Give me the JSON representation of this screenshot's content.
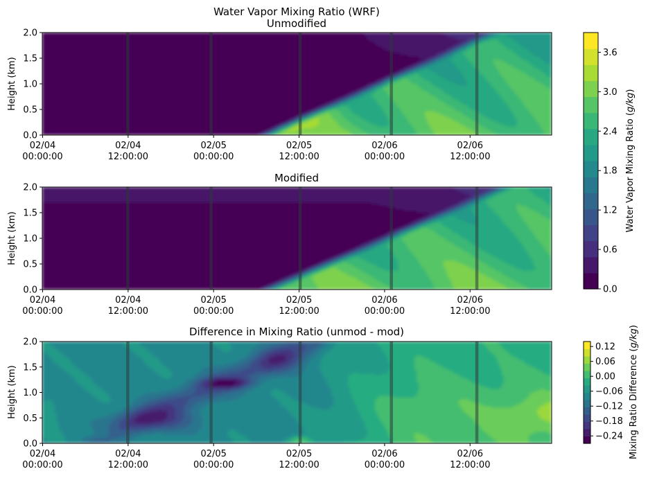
{
  "figure_title": "Water Vapor Mixing Ratio (WRF)",
  "colormap": [
    "#440154",
    "#472d7b",
    "#3b528b",
    "#2c728e",
    "#21918c",
    "#28ae80",
    "#5ec962",
    "#addc30",
    "#fde725"
  ],
  "chart_data": [
    {
      "type": "heatmap",
      "title": "Unmodified",
      "ylabel": "Height (km)",
      "ylim": [
        0,
        2.0
      ],
      "yticks": [
        "0.0",
        "0.5",
        "1.0",
        "1.5",
        "2.0"
      ],
      "xticks": [
        {
          "date": "02/04",
          "time": "00:00:00",
          "hour": 0
        },
        {
          "date": "02/04",
          "time": "12:00:00",
          "hour": 12
        },
        {
          "date": "02/05",
          "time": "00:00:00",
          "hour": 24
        },
        {
          "date": "02/05",
          "time": "12:00:00",
          "hour": 36
        },
        {
          "date": "02/06",
          "time": "00:00:00",
          "hour": 48
        },
        {
          "date": "02/06",
          "time": "12:00:00",
          "hour": 60
        }
      ],
      "x_range_hours": [
        0,
        71.5
      ],
      "vertical_lines_hours": [
        12,
        23.7,
        36.2,
        49,
        61
      ],
      "value_range": [
        0,
        3.9
      ],
      "colorbar_label": "Water Vapor Mixing Ratio (",
      "colorbar_unit": "g/kg",
      "colorbar_ticks": [
        "0.0",
        "0.6",
        "1.2",
        "1.8",
        "2.4",
        "3.0",
        "3.6"
      ],
      "colorbar_tick_values": [
        0,
        0.6,
        1.2,
        1.8,
        2.4,
        3.0,
        3.6
      ],
      "colorbar_levels": 16
    },
    {
      "type": "heatmap",
      "title": "Modified",
      "ylabel": "Height (km)",
      "ylim": [
        0,
        2.0
      ],
      "yticks": [
        "0.0",
        "0.5",
        "1.0",
        "1.5",
        "2.0"
      ],
      "xticks": [
        {
          "date": "02/04",
          "time": "00:00:00",
          "hour": 0
        },
        {
          "date": "02/04",
          "time": "12:00:00",
          "hour": 12
        },
        {
          "date": "02/05",
          "time": "00:00:00",
          "hour": 24
        },
        {
          "date": "02/05",
          "time": "12:00:00",
          "hour": 36
        },
        {
          "date": "02/06",
          "time": "00:00:00",
          "hour": 48
        },
        {
          "date": "02/06",
          "time": "12:00:00",
          "hour": 60
        }
      ],
      "x_range_hours": [
        0,
        71.5
      ],
      "vertical_lines_hours": [
        12,
        23.7,
        36.2,
        49,
        61
      ],
      "value_range": [
        0,
        3.9
      ]
    },
    {
      "type": "heatmap",
      "title": "Difference in Mixing Ratio (unmod - mod)",
      "ylabel": "Height (km)",
      "ylim": [
        0,
        2.0
      ],
      "yticks": [
        "0.0",
        "0.5",
        "1.0",
        "1.5",
        "2.0"
      ],
      "xticks": [
        {
          "date": "02/04",
          "time": "00:00:00",
          "hour": 0
        },
        {
          "date": "02/04",
          "time": "12:00:00",
          "hour": 12
        },
        {
          "date": "02/05",
          "time": "00:00:00",
          "hour": 24
        },
        {
          "date": "02/05",
          "time": "12:00:00",
          "hour": 36
        },
        {
          "date": "02/06",
          "time": "00:00:00",
          "hour": 48
        },
        {
          "date": "02/06",
          "time": "12:00:00",
          "hour": 60
        }
      ],
      "x_range_hours": [
        0,
        71.5
      ],
      "vertical_lines_hours": [
        12,
        23.7,
        36.2,
        49,
        61
      ],
      "value_range": [
        -0.27,
        0.14
      ],
      "colorbar_label": "Mixing Ratio Difference (",
      "colorbar_unit": "g/kg",
      "colorbar_ticks": [
        "−0.24",
        "−0.18",
        "−0.12",
        "−0.06",
        "0.00",
        "0.06",
        "0.12"
      ],
      "colorbar_tick_values": [
        -0.24,
        -0.18,
        -0.12,
        -0.06,
        0.0,
        0.06,
        0.12
      ],
      "colorbar_levels": 14
    }
  ]
}
